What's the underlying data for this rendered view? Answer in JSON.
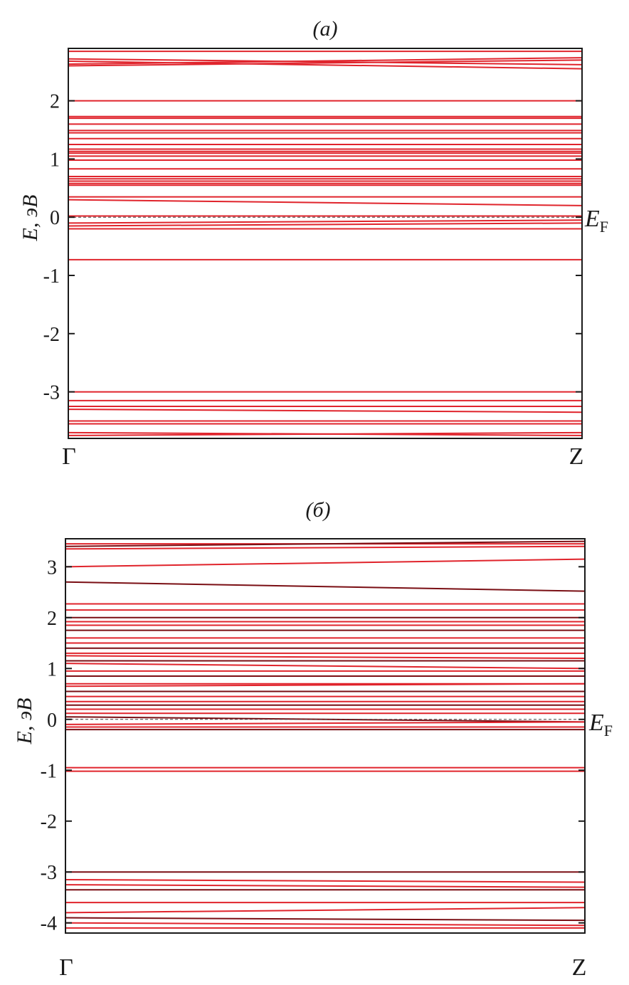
{
  "chart_data": [
    {
      "type": "line",
      "title": "(а)",
      "ylabel": "E, эВ",
      "x_tick_labels": [
        "Г",
        "Z"
      ],
      "y_ticks": [
        "2",
        "1",
        "0",
        "-1",
        "-2",
        "-3"
      ],
      "ylim": [
        -3.8,
        2.9
      ],
      "fermi_label": "E",
      "fermi_subscript": "F",
      "fermi_level": 0,
      "grid": false,
      "colors": {
        "bands": "#e0242c",
        "axis": "#1a1a1a",
        "fermi": "#444444"
      },
      "bands_x": [
        0,
        1
      ],
      "bands": [
        [
          2.85,
          2.85
        ],
        [
          2.72,
          2.62
        ],
        [
          2.68,
          2.55
        ],
        [
          2.63,
          2.74
        ],
        [
          2.6,
          2.7
        ],
        [
          2.0,
          2.0
        ],
        [
          1.73,
          1.73
        ],
        [
          1.7,
          1.7
        ],
        [
          1.6,
          1.6
        ],
        [
          1.49,
          1.49
        ],
        [
          1.45,
          1.45
        ],
        [
          1.35,
          1.35
        ],
        [
          1.25,
          1.25
        ],
        [
          1.17,
          1.17
        ],
        [
          1.13,
          1.13
        ],
        [
          1.1,
          1.1
        ],
        [
          1.05,
          1.05
        ],
        [
          0.98,
          0.98
        ],
        [
          0.83,
          0.83
        ],
        [
          0.7,
          0.7
        ],
        [
          0.66,
          0.66
        ],
        [
          0.62,
          0.62
        ],
        [
          0.58,
          0.58
        ],
        [
          0.55,
          0.55
        ],
        [
          0.35,
          0.35
        ],
        [
          0.3,
          0.2
        ],
        [
          0.02,
          0.02
        ],
        [
          -0.1,
          -0.05
        ],
        [
          -0.15,
          -0.1
        ],
        [
          -0.2,
          -0.2
        ],
        [
          -0.73,
          -0.73
        ],
        [
          -3.0,
          -3.0
        ],
        [
          -3.15,
          -3.15
        ],
        [
          -3.25,
          -3.25
        ],
        [
          -3.3,
          -3.35
        ],
        [
          -3.5,
          -3.5
        ],
        [
          -3.55,
          -3.55
        ],
        [
          -3.7,
          -3.75
        ],
        [
          -3.75,
          -3.7
        ]
      ]
    },
    {
      "type": "line",
      "title": "(б)",
      "ylabel": "E, эВ",
      "x_tick_labels": [
        "Г",
        "Z"
      ],
      "y_ticks": [
        "3",
        "2",
        "1",
        "0",
        "-1",
        "-2",
        "-3",
        "-4"
      ],
      "ylim": [
        -4.2,
        3.55
      ],
      "fermi_label": "E",
      "fermi_subscript": "F",
      "fermi_level": 0,
      "grid": false,
      "colors": {
        "bands": "#e0242c",
        "dark_bands": "#7a0f14",
        "axis": "#1a1a1a",
        "fermi": "#444444"
      },
      "bands_x": [
        0,
        1
      ],
      "bands": [
        [
          3.45,
          3.45
        ],
        [
          3.4,
          3.5
        ],
        [
          3.35,
          3.4
        ],
        [
          3.0,
          3.15
        ],
        [
          2.7,
          2.52
        ],
        [
          2.27,
          2.27
        ],
        [
          2.15,
          2.15
        ],
        [
          2.0,
          2.0
        ],
        [
          1.92,
          1.92
        ],
        [
          1.85,
          1.85
        ],
        [
          1.75,
          1.75
        ],
        [
          1.6,
          1.6
        ],
        [
          1.5,
          1.5
        ],
        [
          1.4,
          1.4
        ],
        [
          1.3,
          1.3
        ],
        [
          1.25,
          1.2
        ],
        [
          1.15,
          1.15
        ],
        [
          1.1,
          1.0
        ],
        [
          0.95,
          0.95
        ],
        [
          0.85,
          0.85
        ],
        [
          0.7,
          0.7
        ],
        [
          0.65,
          0.7
        ],
        [
          0.55,
          0.55
        ],
        [
          0.45,
          0.45
        ],
        [
          0.35,
          0.35
        ],
        [
          0.28,
          0.28
        ],
        [
          0.2,
          0.2
        ],
        [
          0.12,
          0.12
        ],
        [
          0.05,
          -0.05
        ],
        [
          -0.1,
          -0.05
        ],
        [
          -0.15,
          -0.15
        ],
        [
          -0.2,
          -0.2
        ],
        [
          -0.95,
          -0.95
        ],
        [
          -1.02,
          -1.02
        ],
        [
          -3.0,
          -3.0
        ],
        [
          -3.15,
          -3.2
        ],
        [
          -3.25,
          -3.3
        ],
        [
          -3.35,
          -3.35
        ],
        [
          -3.6,
          -3.6
        ],
        [
          -3.8,
          -3.7
        ],
        [
          -3.9,
          -3.95
        ],
        [
          -4.0,
          -4.05
        ],
        [
          -4.1,
          -4.1
        ]
      ]
    }
  ]
}
